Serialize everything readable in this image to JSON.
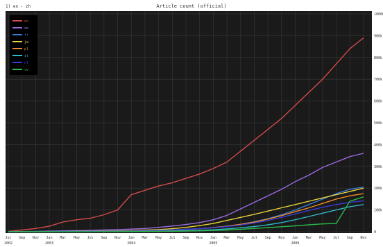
{
  "chart_data": {
    "type": "line",
    "title": "Article count (official)",
    "corner_label": "1) en - zh",
    "grid": true,
    "legend_position": "top-left",
    "background": "#1a1a1a",
    "grid_color": "#3a3a3a",
    "x": [
      "2002-08",
      "2002-10",
      "2002-12",
      "2003-02",
      "2003-04",
      "2003-06",
      "2003-08",
      "2003-10",
      "2003-12",
      "2004-02",
      "2004-04",
      "2004-06",
      "2004-08",
      "2004-10",
      "2004-12",
      "2005-02",
      "2005-04",
      "2005-06",
      "2005-08",
      "2005-10",
      "2005-12",
      "2006-02",
      "2006-04",
      "2006-06",
      "2006-08",
      "2006-10",
      "2006-12"
    ],
    "x_tick_labels": [
      "Jul",
      "Sep",
      "Nov",
      "Jan",
      "Mar",
      "May",
      "Jul",
      "Sep",
      "Nov",
      "Jan",
      "Mar",
      "May",
      "Jul",
      "Sep",
      "Nov",
      "Jan",
      "Mar",
      "May",
      "Jul",
      "Sep",
      "Nov",
      "Jan",
      "Mar",
      "May",
      "Jul",
      "Sep",
      "Nov"
    ],
    "x_year_labels": [
      "2002",
      "2003",
      "2004",
      "2005",
      "2006"
    ],
    "y_tick_labels": [
      "0",
      "100k",
      "200k",
      "300k",
      "400k",
      "500k",
      "600k",
      "700k",
      "800k",
      "900k",
      "1000k"
    ],
    "ylim": [
      0,
      1000000
    ],
    "series": [
      {
        "name": "en",
        "color": "#d24a4a",
        "values": [
          2000,
          8000,
          15000,
          25000,
          45000,
          55000,
          62000,
          78000,
          100000,
          170000,
          190000,
          210000,
          225000,
          245000,
          265000,
          290000,
          320000,
          370000,
          420000,
          470000,
          520000,
          580000,
          640000,
          700000,
          770000,
          840000,
          890000
        ]
      },
      {
        "name": "de",
        "color": "#9b6be0",
        "values": [
          500,
          1000,
          2000,
          3000,
          4000,
          5000,
          6000,
          8000,
          10000,
          12000,
          15000,
          20000,
          26000,
          33000,
          42000,
          55000,
          75000,
          105000,
          135000,
          165000,
          195000,
          230000,
          260000,
          295000,
          320000,
          345000,
          360000
        ]
      },
      {
        "name": "fr",
        "color": "#3a7ad8",
        "values": [
          0,
          200,
          500,
          800,
          1200,
          1500,
          2000,
          2500,
          3000,
          4000,
          5000,
          6500,
          8500,
          11000,
          14000,
          18000,
          24000,
          34000,
          46000,
          60000,
          78000,
          100000,
          125000,
          150000,
          175000,
          195000,
          205000
        ]
      },
      {
        "name": "ja",
        "color": "#e8d23a",
        "values": [
          0,
          100,
          300,
          600,
          1000,
          1500,
          2200,
          3000,
          4000,
          5500,
          7500,
          10000,
          14000,
          20000,
          28000,
          38000,
          52000,
          66000,
          80000,
          95000,
          110000,
          125000,
          140000,
          155000,
          170000,
          185000,
          200000
        ]
      },
      {
        "name": "pl",
        "color": "#e88a2a",
        "values": [
          0,
          100,
          200,
          400,
          600,
          800,
          1000,
          1400,
          1800,
          2500,
          3500,
          5000,
          7000,
          10000,
          14000,
          19000,
          26000,
          34000,
          44000,
          58000,
          74000,
          92000,
          110000,
          130000,
          150000,
          165000,
          175000
        ]
      },
      {
        "name": "it",
        "color": "#2fb8c8",
        "values": [
          0,
          50,
          100,
          200,
          300,
          400,
          500,
          700,
          900,
          1200,
          1600,
          2200,
          3000,
          4500,
          6500,
          9000,
          13000,
          18000,
          24000,
          32000,
          42000,
          55000,
          70000,
          85000,
          100000,
          115000,
          125000
        ]
      },
      {
        "name": "nl",
        "color": "#3a3ad8",
        "values": [
          0,
          100,
          300,
          500,
          800,
          1000,
          1500,
          2000,
          2700,
          3500,
          4500,
          6000,
          8000,
          10500,
          14000,
          18500,
          24000,
          31000,
          40000,
          52000,
          66000,
          82000,
          98000,
          112000,
          125000,
          135000,
          142000
        ]
      },
      {
        "name": "sv",
        "color": "#2ab84a",
        "values": [
          0,
          50,
          100,
          150,
          200,
          300,
          400,
          500,
          700,
          900,
          1200,
          1600,
          2200,
          3000,
          4200,
          5800,
          8000,
          11000,
          15000,
          19000,
          23000,
          27000,
          32000,
          36000,
          38000,
          140000,
          160000
        ]
      }
    ]
  }
}
